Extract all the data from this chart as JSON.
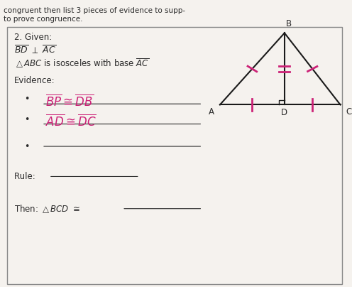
{
  "page_background": "#f5f2ee",
  "title_line1": "congruent then list 3 pieces of evidence to supp-",
  "title_line2": "to prove congruence.",
  "problem_number": "2. Given:",
  "text_color_dark": "#2a2a2a",
  "text_color_pink": "#cc2277",
  "line_color": "#1a1a1a",
  "tA": [
    0.63,
    0.635
  ],
  "tB": [
    0.815,
    0.885
  ],
  "tC": [
    0.975,
    0.635
  ],
  "tD": [
    0.815,
    0.635
  ]
}
